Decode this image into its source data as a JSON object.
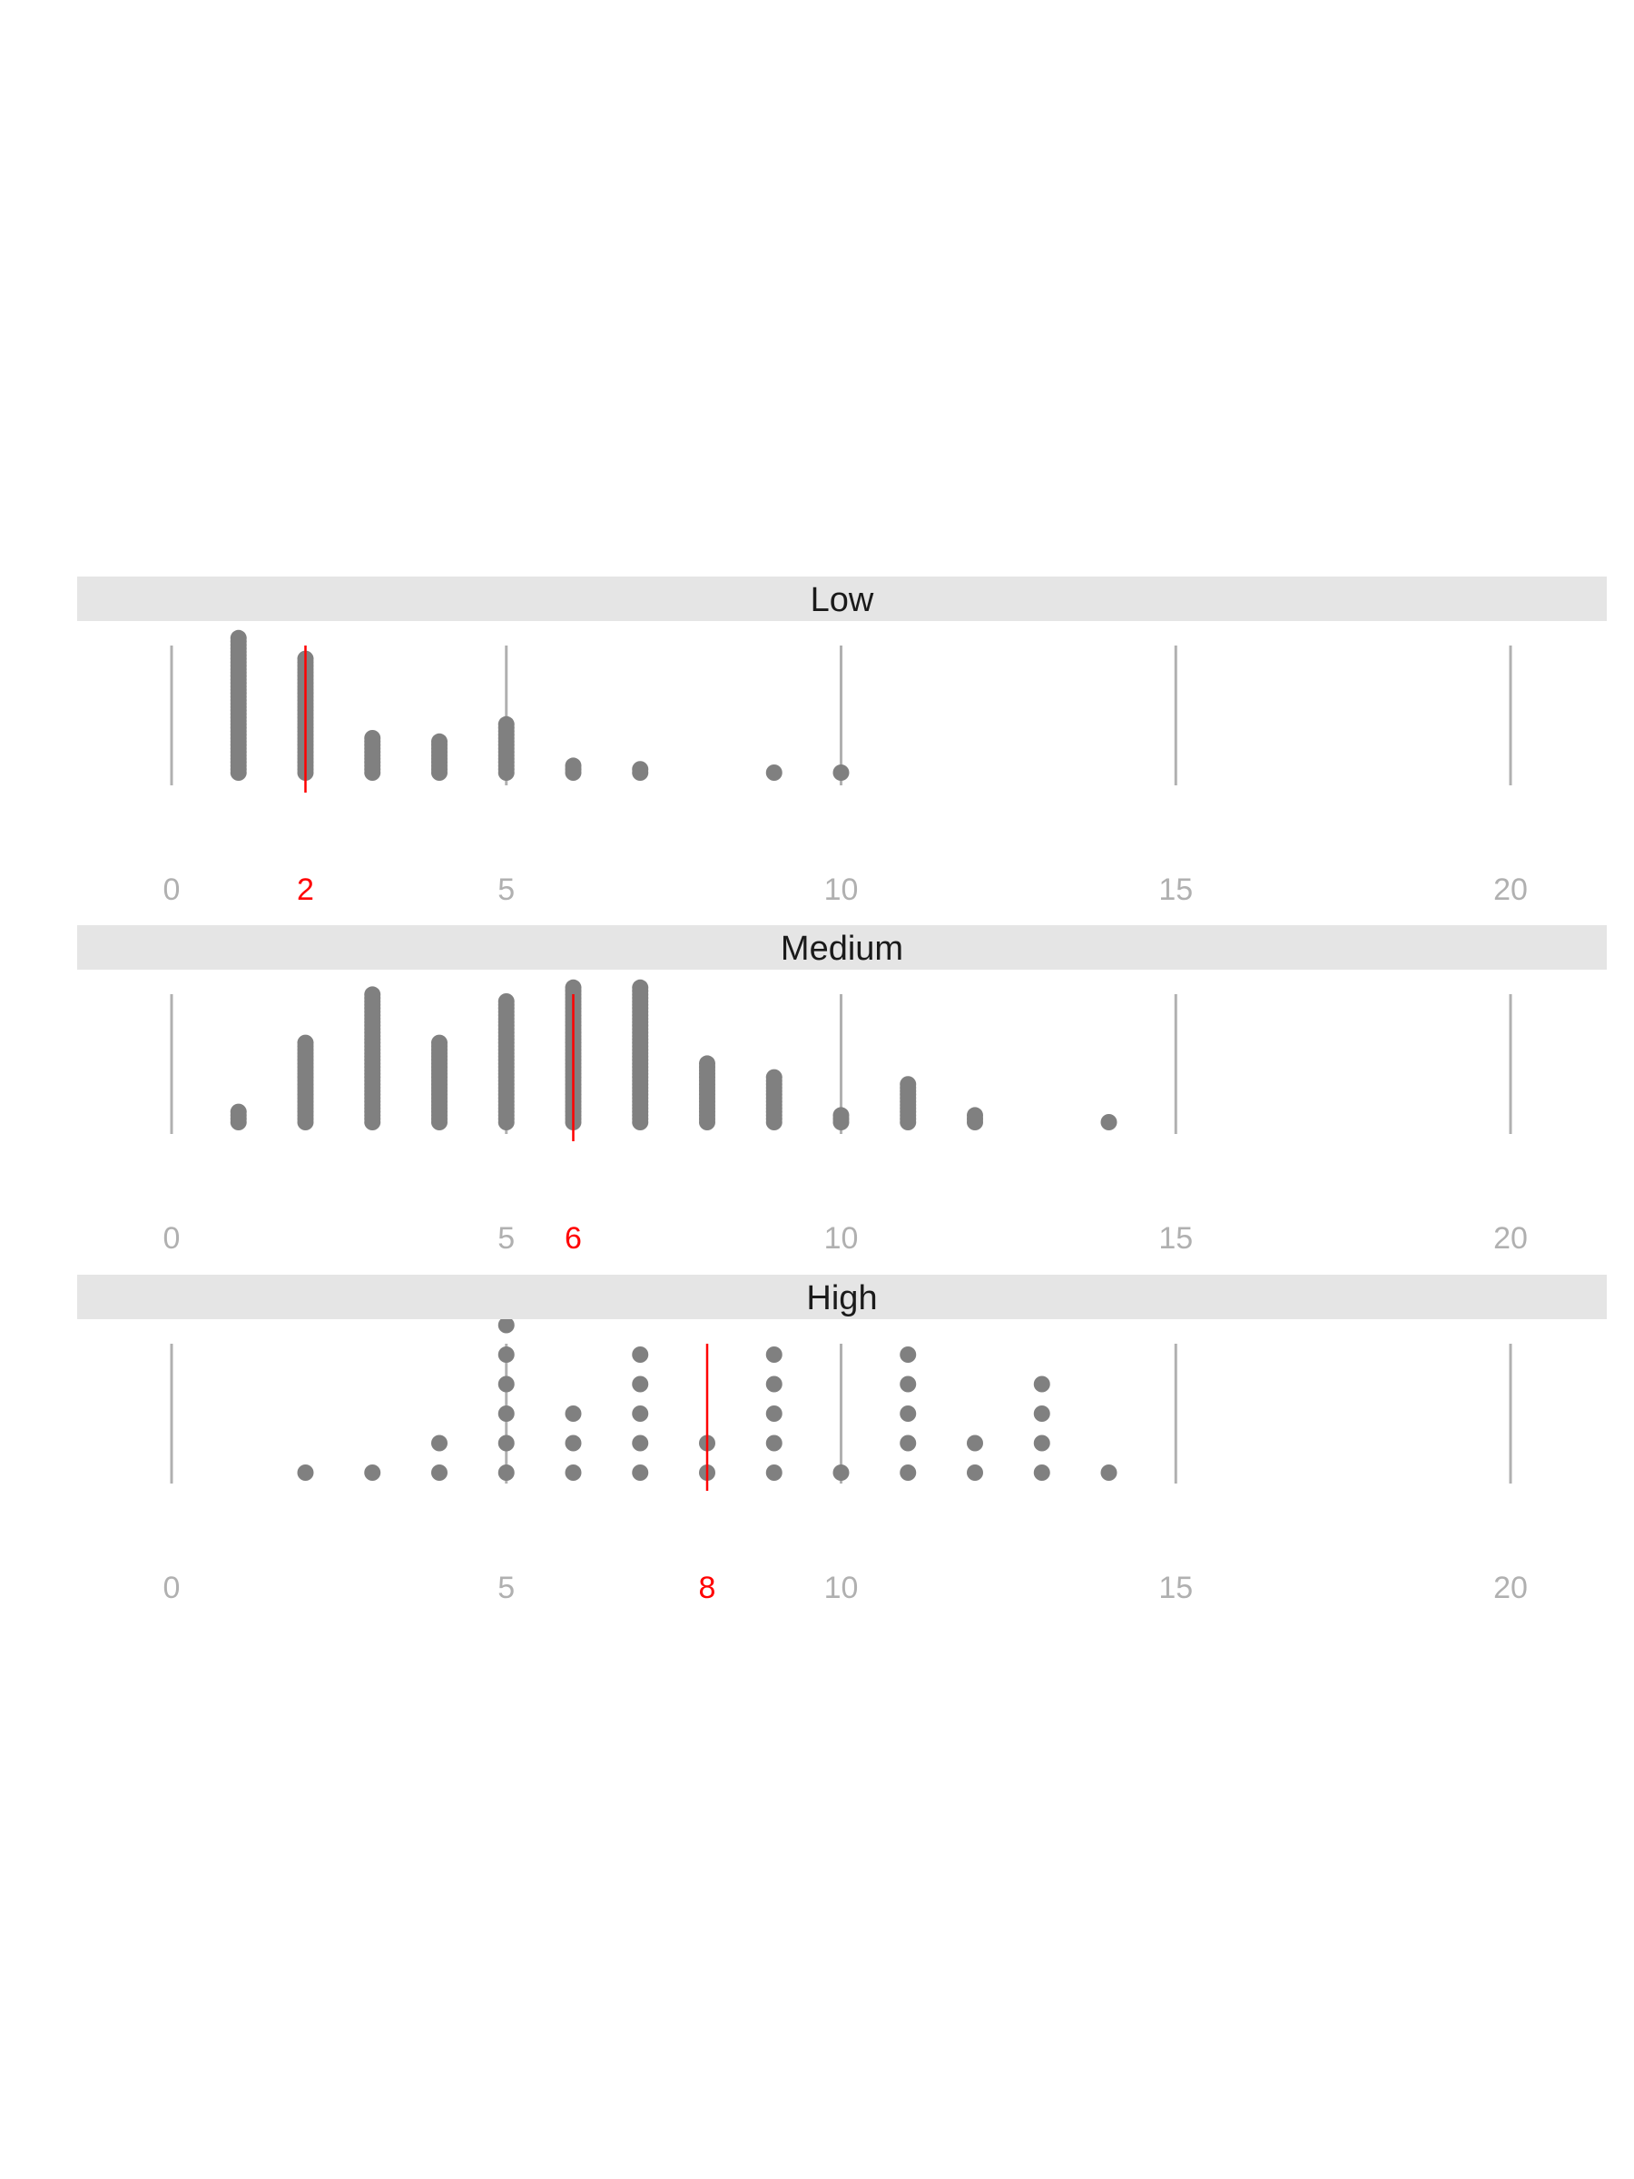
{
  "chart_data": {
    "type": "dotplot",
    "x_ticks": [
      0,
      5,
      10,
      15,
      20
    ],
    "xlim": [
      0,
      20
    ],
    "grid": "vertical",
    "panels": [
      {
        "label": "Low",
        "median": 2,
        "median_label": "2",
        "counts": [
          {
            "x": 1,
            "n": 40
          },
          {
            "x": 2,
            "n": 34
          },
          {
            "x": 3,
            "n": 11
          },
          {
            "x": 4,
            "n": 10
          },
          {
            "x": 5,
            "n": 15
          },
          {
            "x": 6,
            "n": 3
          },
          {
            "x": 7,
            "n": 2
          },
          {
            "x": 9,
            "n": 1
          },
          {
            "x": 10,
            "n": 1
          }
        ]
      },
      {
        "label": "Medium",
        "median": 6,
        "median_label": "6",
        "counts": [
          {
            "x": 1,
            "n": 4
          },
          {
            "x": 2,
            "n": 24
          },
          {
            "x": 3,
            "n": 38
          },
          {
            "x": 4,
            "n": 24
          },
          {
            "x": 5,
            "n": 36
          },
          {
            "x": 6,
            "n": 40
          },
          {
            "x": 7,
            "n": 40
          },
          {
            "x": 8,
            "n": 18
          },
          {
            "x": 9,
            "n": 14
          },
          {
            "x": 10,
            "n": 3
          },
          {
            "x": 11,
            "n": 12
          },
          {
            "x": 12,
            "n": 3
          },
          {
            "x": 13,
            "n": 0
          },
          {
            "x": 14,
            "n": 1
          }
        ]
      },
      {
        "label": "High",
        "median": 8,
        "median_label": "8",
        "counts": [
          {
            "x": 2,
            "n": 1
          },
          {
            "x": 3,
            "n": 1
          },
          {
            "x": 4,
            "n": 2
          },
          {
            "x": 5,
            "n": 6
          },
          {
            "x": 6,
            "n": 3
          },
          {
            "x": 7,
            "n": 5
          },
          {
            "x": 8,
            "n": 2
          },
          {
            "x": 9,
            "n": 5
          },
          {
            "x": 10,
            "n": 1
          },
          {
            "x": 11,
            "n": 5
          },
          {
            "x": 12,
            "n": 2
          },
          {
            "x": 13,
            "n": 4
          },
          {
            "x": 14,
            "n": 1
          }
        ]
      }
    ]
  }
}
